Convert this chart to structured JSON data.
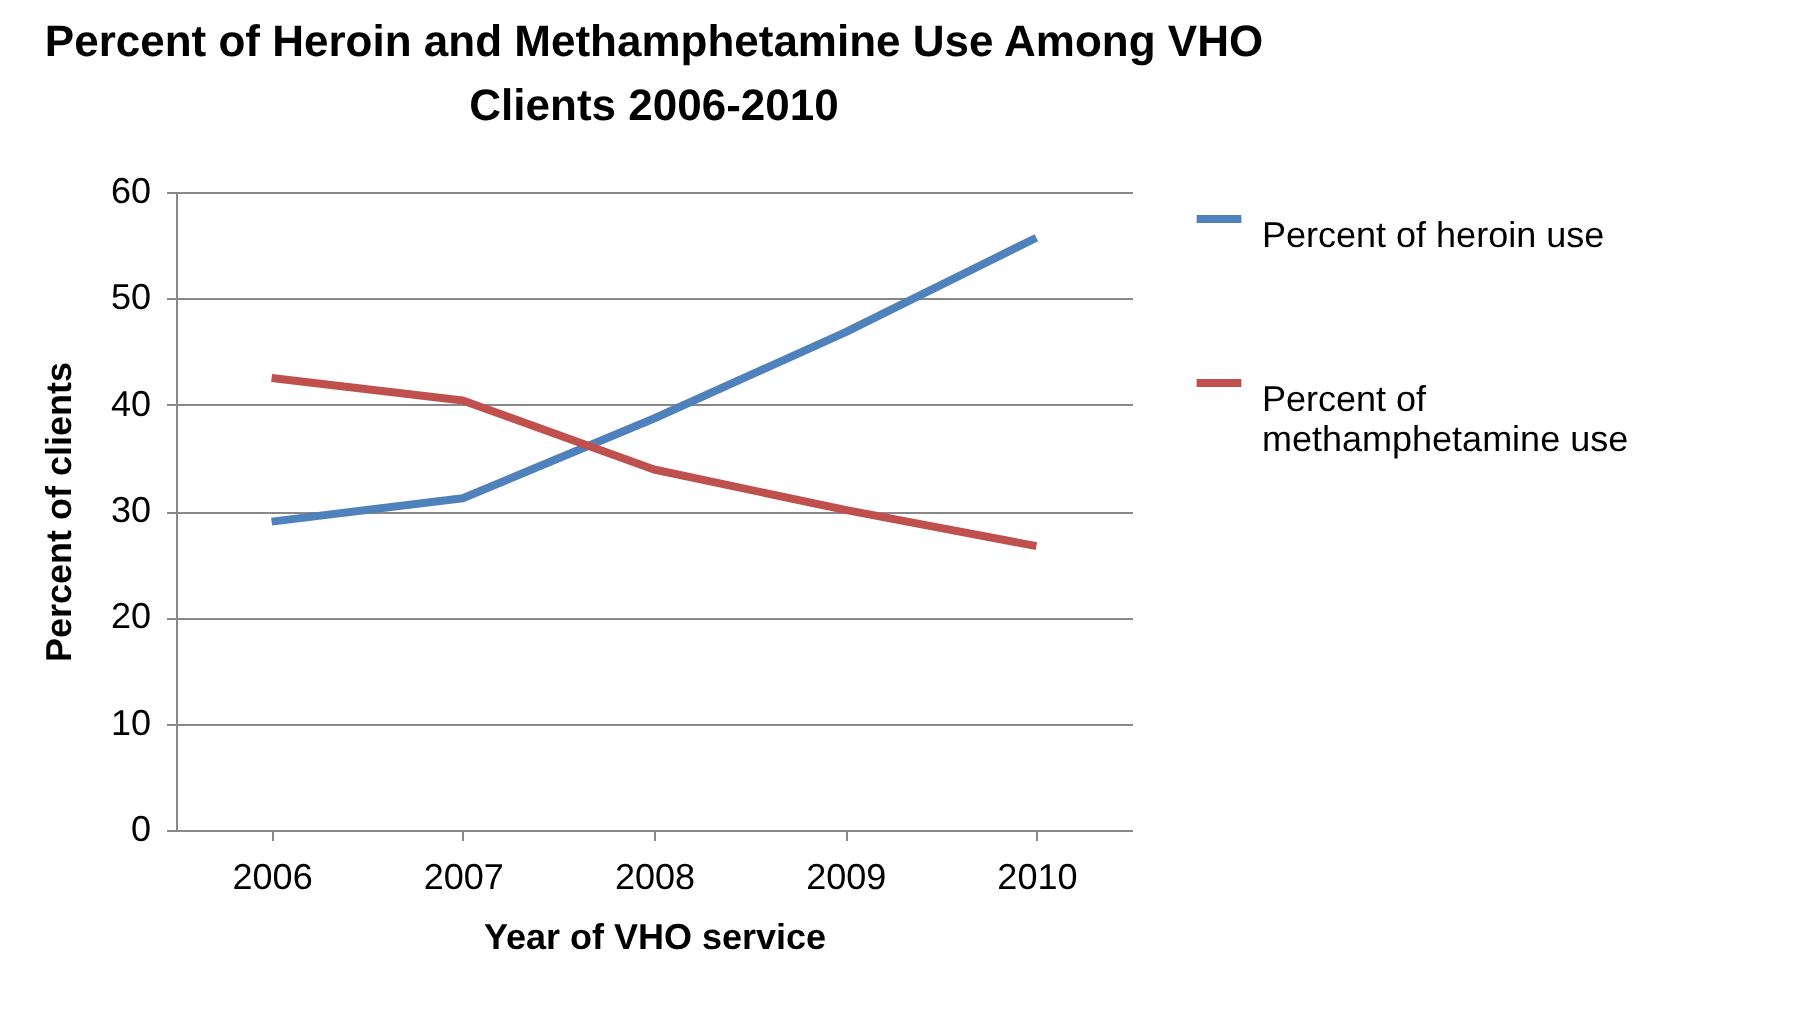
{
  "chart_data": {
    "type": "line",
    "title": "Percent of Heroin and Methamphetamine Use Among VHO Clients 2006-2010",
    "xlabel": "Year of VHO service",
    "ylabel": "Percent of clients",
    "categories": [
      "2006",
      "2007",
      "2008",
      "2009",
      "2010"
    ],
    "series": [
      {
        "name": "Percent of heroin use",
        "color": "#4f81bd",
        "values": [
          29.0,
          31.2,
          38.7,
          46.8,
          55.7
        ]
      },
      {
        "name": "Percent of methamphetamine use",
        "color": "#c0504d",
        "values": [
          42.5,
          40.4,
          33.9,
          30.1,
          26.7
        ]
      }
    ],
    "ylim": [
      0,
      60
    ],
    "yticks": [
      0,
      10,
      20,
      30,
      40,
      50,
      60
    ],
    "grid": "y",
    "legend": "right",
    "marker": "none",
    "line_style": "solid"
  }
}
